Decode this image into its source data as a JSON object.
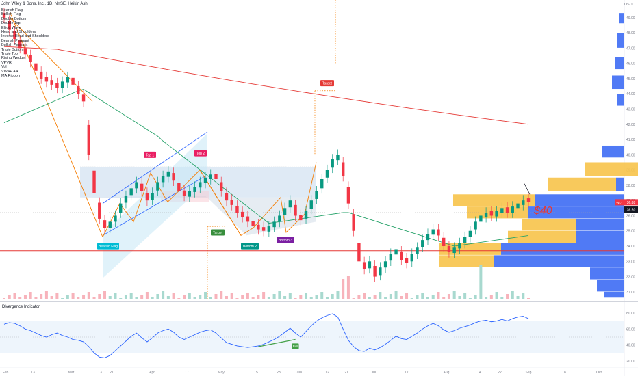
{
  "header": {
    "title": "John Wiley & Sons, Inc., 1D, NYSE, Heikin Ashi",
    "currency": "USD"
  },
  "legend": {
    "items": [
      "Bearish Flag",
      "Bullish Flag",
      "Double Bottom",
      "Double Top",
      "Elliott Wave",
      "Head and Shoulders",
      "Inverse Head and Shoulders",
      "Bearish Pennant",
      "Bullish Pennant",
      "Triple Bottom",
      "Triple Top",
      "Rising Wedge",
      "VPVR",
      "Vol",
      "VWAP AA",
      "MA Ribbon"
    ]
  },
  "annotations": {
    "top1": "Top 1",
    "top2": "Top 2",
    "target1": "Target",
    "target2": "Target",
    "bearish_flag": "Bearish Flag",
    "bottom2": "Bottom 2",
    "bottom3": "Bottom 3",
    "price_handwritten": "$40",
    "bull": "Bull"
  },
  "price_axis": {
    "labels": [
      "49.00",
      "48.00",
      "47.00",
      "46.00",
      "45.00",
      "44.00",
      "43.00",
      "42.00",
      "41.00",
      "40.00",
      "39.00",
      "38.00",
      "37.00",
      "36.00",
      "35.00",
      "34.00",
      "33.00",
      "32.00",
      "31.00"
    ]
  },
  "price_tags": {
    "last": "36.88",
    "ticker": "WLY",
    "second": "36.50"
  },
  "oscillator": {
    "title": "Divergence Indicator",
    "labels": [
      "80.00",
      "60.00",
      "40.00",
      "20.00"
    ]
  },
  "time_axis": {
    "labels": [
      "Feb",
      "13",
      "Mar",
      "13",
      "21",
      "Apr",
      "17",
      "May",
      "15",
      "23",
      "Jun",
      "12",
      "21",
      "Jul",
      "17",
      "Aug",
      "14",
      "22",
      "Sep",
      "18",
      "Oct"
    ]
  },
  "colors": {
    "up": "#089981",
    "down": "#f23645",
    "ma_red": "#e53935",
    "ma_green": "#26a269",
    "osc_line": "#2962ff",
    "vp_blue": "#3d6cf4",
    "vp_yellow": "#f7c34a"
  },
  "chart_data": {
    "type": "candlestick",
    "title": "John Wiley & Sons, Inc., 1D, NYSE, Heikin Ashi",
    "ylim": [
      30.5,
      49.8
    ],
    "support_level": 33.7,
    "last_price": 36.88,
    "closes": [
      49.0,
      48.2,
      47.6,
      47.0,
      46.6,
      46.1,
      45.5,
      45.0,
      44.8,
      44.6,
      44.4,
      44.8,
      45.1,
      44.6,
      44.0,
      43.5,
      40.0,
      37.5,
      35.8,
      35.2,
      35.6,
      36.0,
      36.8,
      37.3,
      37.8,
      38.2,
      37.6,
      37.0,
      37.5,
      38.2,
      38.6,
      38.9,
      38.3,
      37.6,
      37.3,
      37.6,
      37.9,
      38.2,
      38.5,
      38.7,
      38.4,
      37.6,
      37.0,
      36.7,
      36.2,
      35.9,
      35.6,
      35.3,
      35.1,
      35.0,
      35.3,
      35.6,
      36.0,
      36.5,
      37.0,
      36.0,
      35.7,
      36.3,
      37.0,
      37.6,
      38.4,
      39.0,
      39.7,
      40.0,
      38.6,
      36.8,
      35.0,
      33.0,
      32.5,
      33.0,
      32.0,
      32.6,
      33.0,
      33.5,
      33.8,
      33.1,
      32.9,
      33.5,
      33.9,
      34.4,
      34.8,
      35.1,
      34.7,
      34.0,
      33.6,
      33.9,
      34.2,
      34.6,
      35.0,
      35.6,
      36.0,
      36.2,
      36.0,
      36.3,
      36.5,
      36.2,
      36.6,
      36.8,
      37.0,
      36.88
    ],
    "oscillator_values": [
      66,
      68,
      67,
      64,
      60,
      58,
      55,
      52,
      50,
      53,
      55,
      52,
      50,
      47,
      46,
      44,
      38,
      30,
      25,
      24,
      27,
      33,
      39,
      45,
      51,
      55,
      49,
      44,
      49,
      55,
      58,
      60,
      56,
      50,
      47,
      50,
      53,
      56,
      58,
      59,
      55,
      49,
      43,
      41,
      39,
      38,
      37,
      38,
      39,
      41,
      44,
      47,
      51,
      56,
      61,
      55,
      50,
      57,
      64,
      70,
      74,
      77,
      79,
      75,
      60,
      46,
      38,
      33,
      32,
      36,
      34,
      37,
      41,
      46,
      51,
      48,
      47,
      51,
      55,
      60,
      64,
      67,
      64,
      59,
      56,
      58,
      61,
      63,
      65,
      68,
      70,
      71,
      69,
      70,
      72,
      70,
      73,
      75,
      76,
      73
    ]
  }
}
